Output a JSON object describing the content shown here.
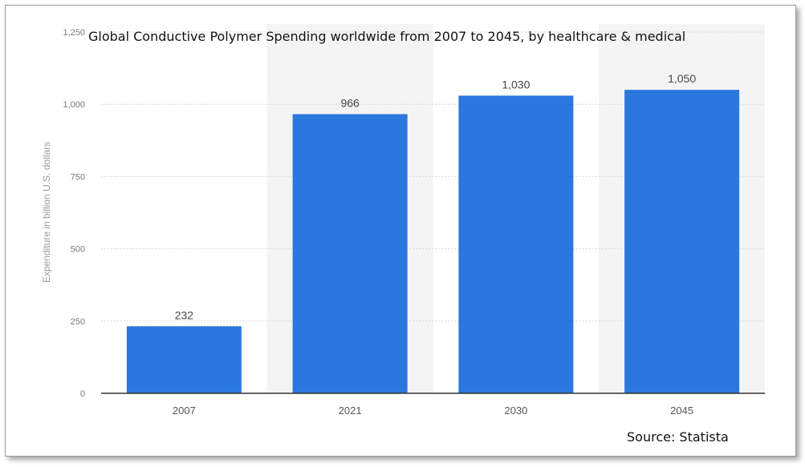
{
  "chart_data": {
    "type": "bar",
    "title": "Global Conductive Polymer Spending worldwide from 2007 to 2045, by healthcare & medical",
    "xlabel": "",
    "ylabel": "Expenditure in billion U.S. dollars",
    "categories": [
      "2007",
      "2021",
      "2030",
      "2045"
    ],
    "values": [
      232,
      966,
      1030,
      1050
    ],
    "value_labels": [
      "232",
      "966",
      "1,030",
      "1,050"
    ],
    "ylim": [
      0,
      1250
    ],
    "yticks": [
      0,
      250,
      500,
      750,
      1000,
      1250
    ],
    "ytick_labels": [
      "0",
      "250",
      "500",
      "750",
      "1,000",
      "1,250"
    ],
    "grid": true,
    "bar_color": "#2a78de",
    "alt_band_color": "#f4f4f4",
    "source": "Source: Statista"
  }
}
